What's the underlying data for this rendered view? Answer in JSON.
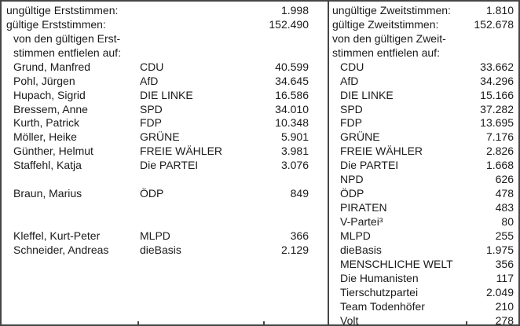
{
  "colors": {
    "text": "#1a1a1a",
    "border": "#454545",
    "background": "#ffffff"
  },
  "panels": {
    "left": {
      "header": [
        {
          "label": "ungültige Erststimmen:",
          "value": "1.998"
        },
        {
          "label": "gültige Erststimmen:",
          "value": "152.490"
        },
        {
          "label": "von den gültigen Erst-",
          "value": ""
        },
        {
          "label": "stimmen entfielen auf:",
          "value": ""
        }
      ],
      "rows": [
        {
          "candidate": "Grund, Manfred",
          "party": "CDU",
          "votes": "40.599"
        },
        {
          "candidate": "Pohl, Jürgen",
          "party": "AfD",
          "votes": "34.645"
        },
        {
          "candidate": "Hupach, Sigrid",
          "party": "DIE LINKE",
          "votes": "16.586"
        },
        {
          "candidate": "Bressem, Anne",
          "party": "SPD",
          "votes": "34.010"
        },
        {
          "candidate": "Kurth, Patrick",
          "party": "FDP",
          "votes": "10.348"
        },
        {
          "candidate": "Möller, Heike",
          "party": "GRÜNE",
          "votes": "5.901"
        },
        {
          "candidate": "Günther, Helmut",
          "party": "FREIE WÄHLER",
          "votes": "3.981"
        },
        {
          "candidate": "Staffehl, Katja",
          "party": "Die PARTEI",
          "votes": "3.076"
        },
        {
          "candidate": "",
          "party": "",
          "votes": ""
        },
        {
          "candidate": "Braun, Marius",
          "party": "ÖDP",
          "votes": "849"
        },
        {
          "candidate": "",
          "party": "",
          "votes": ""
        },
        {
          "candidate": "",
          "party": "",
          "votes": ""
        },
        {
          "candidate": "Kleffel, Kurt-Peter",
          "party": "MLPD",
          "votes": "366"
        },
        {
          "candidate": "Schneider, Andreas",
          "party": "dieBasis",
          "votes": "2.129"
        }
      ]
    },
    "right": {
      "header": [
        {
          "label": "ungültige Zweitstimmen:",
          "value": "1.810"
        },
        {
          "label": "gültige Zweitstimmen:",
          "value": "152.678"
        },
        {
          "label": "von den gültigen Zweit-",
          "value": ""
        },
        {
          "label": "stimmen entfielen auf:",
          "value": ""
        }
      ],
      "rows": [
        {
          "party": "CDU",
          "votes": "33.662"
        },
        {
          "party": "AfD",
          "votes": "34.296"
        },
        {
          "party": "DIE LINKE",
          "votes": "15.166"
        },
        {
          "party": "SPD",
          "votes": "37.282"
        },
        {
          "party": "FDP",
          "votes": "13.695"
        },
        {
          "party": "GRÜNE",
          "votes": "7.176"
        },
        {
          "party": "FREIE WÄHLER",
          "votes": "2.826"
        },
        {
          "party": "Die PARTEI",
          "votes": "1.668"
        },
        {
          "party": "NPD",
          "votes": "626"
        },
        {
          "party": "ÖDP",
          "votes": "478"
        },
        {
          "party": "PIRATEN",
          "votes": "483"
        },
        {
          "party": "V-Partei³",
          "votes": "80"
        },
        {
          "party": "MLPD",
          "votes": "255"
        },
        {
          "party": "dieBasis",
          "votes": "1.975"
        },
        {
          "party": "MENSCHLICHE WELT",
          "votes": "356"
        },
        {
          "party": "Die Humanisten",
          "votes": "117"
        },
        {
          "party": "Tierschutzpartei",
          "votes": "2.049"
        },
        {
          "party": "Team Todenhöfer",
          "votes": "210"
        },
        {
          "party": "Volt",
          "votes": "278"
        }
      ]
    }
  }
}
